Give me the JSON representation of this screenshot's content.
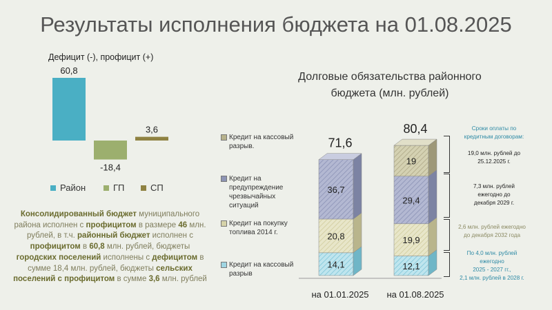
{
  "title": "Результаты исполнения бюджета на 01.08.2025",
  "bar_chart": {
    "title": "Дефицит (-), профицит (+)",
    "legend": [
      {
        "name": "Район",
        "color": "#4aafc4"
      },
      {
        "name": "ГП",
        "color": "#9caf6e"
      },
      {
        "name": "СП",
        "color": "#8f8242"
      }
    ]
  },
  "summary": {
    "p1": "Консолидированный бюджет",
    "p2": " муниципального района исполнен с ",
    "p3": "профицитом",
    "p4": " в размере ",
    "p5": "46",
    "p6": " млн. рублей, в т.ч. ",
    "p7": "районный бюджет",
    "p8": " исполнен с ",
    "p9": "профицитом",
    "p10": " в ",
    "p11": "60,8",
    "p12": " млн. рублей, бюджеты ",
    "p13": "городских поселений",
    "p14": " исполнены с ",
    "p15": "дефицитом",
    "p16": " в сумме 18,4 млн. рублей, бюджеты ",
    "p17": "сельских поселений с профицитом",
    "p18": " в сумме ",
    "p19": "3,6",
    "p20": " млн. рублей"
  },
  "debt": {
    "title_line1": "Долговые обязательства районного",
    "title_line2": "бюджета (млн. рублей)",
    "categories": [
      {
        "label_lines": [
          "Кредит на кассовый",
          "разрыв."
        ],
        "swatch": "#b7b28c"
      },
      {
        "label_lines": [
          "Кредит на",
          "предупреждение",
          "чрезвычайных",
          "ситуаций"
        ],
        "swatch": "#8d94b4"
      },
      {
        "label_lines": [
          "Кредит на покупку",
          "топлива 2014 г."
        ],
        "swatch": "#d6d3a9"
      },
      {
        "label_lines": [
          "Кредит на кассовый",
          "разрыв"
        ],
        "swatch": "#9fd5e2"
      }
    ],
    "notes_header_lines": [
      "Сроки оплаты по",
      "кредитным договорам:"
    ],
    "note1_lines": [
      "19,0 млн. рублей до",
      "25.12.2025 г."
    ],
    "note2_lines": [
      "7,3 млн. рублей",
      "ежегодно до",
      "декабря 2029 г."
    ],
    "note3_lines": [
      "2,6 млн. рублей ежегодно",
      "до декабря 2032 года"
    ],
    "note4_lines": [
      "По 4,0 млн. рублей",
      "ежегодно",
      "2025 - 2027 гг.,",
      "2,1 млн. рублей в 2028 г."
    ]
  },
  "chart_data": [
    {
      "type": "bar",
      "title": "Дефицит (-), профицит (+)",
      "categories": [
        "Район",
        "ГП",
        "СП"
      ],
      "values": [
        60.8,
        -18.4,
        3.6
      ],
      "value_labels": [
        "60,8",
        "-18,4",
        "3,6"
      ],
      "colors": [
        "#4aafc4",
        "#9caf6e",
        "#8f8242"
      ],
      "legend_position": "bottom",
      "grid": false
    },
    {
      "type": "bar",
      "stacked": true,
      "title": "Долговые обязательства районного бюджета (млн. рублей)",
      "categories": [
        "на 01.01.2025",
        "на 01.08.2025"
      ],
      "totals": [
        71.6,
        80.4
      ],
      "total_labels": [
        "71,6",
        "80,4"
      ],
      "series": [
        {
          "name": "Кредит на кассовый разрыв",
          "values": [
            14.1,
            12.1
          ],
          "labels": [
            "14,1",
            "12,1"
          ],
          "color": "#9fd5e2"
        },
        {
          "name": "Кредит на покупку топлива 2014 г.",
          "values": [
            20.8,
            19.9
          ],
          "labels": [
            "20,8",
            "19,9"
          ],
          "color": "#d6d3a9"
        },
        {
          "name": "Кредит на предупреждение чрезвычайных ситуаций",
          "values": [
            36.7,
            29.4
          ],
          "labels": [
            "36,7",
            "29,4"
          ],
          "color": "#8d94b4"
        },
        {
          "name": "Кредит на кассовый разрыв.",
          "values": [
            0,
            19
          ],
          "labels": [
            "",
            "19"
          ],
          "color": "#b7b28c"
        }
      ],
      "legend_position": "left",
      "grid": false
    }
  ]
}
